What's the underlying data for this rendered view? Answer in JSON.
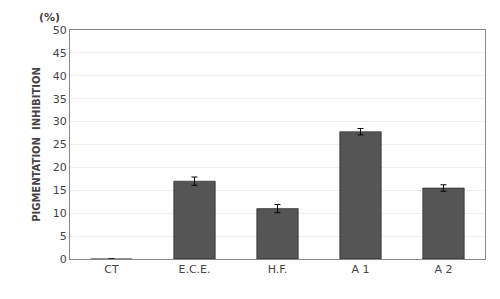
{
  "chart_data": {
    "type": "bar",
    "categories": [
      "CT",
      "E.C.E.",
      "H.F.",
      "A 1",
      "A 2"
    ],
    "values": [
      0,
      17.0,
      11.0,
      27.8,
      15.5
    ],
    "errors": [
      0,
      0.9,
      0.9,
      0.7,
      0.7
    ],
    "color": "#555555",
    "ylabel": "PIGMENTATION  INHIBITION",
    "annotations": [
      "(%)"
    ],
    "ylim": [
      0,
      50
    ],
    "yticks": [
      0,
      5,
      10,
      15,
      20,
      25,
      30,
      35,
      40,
      45,
      50
    ],
    "grid": true
  }
}
